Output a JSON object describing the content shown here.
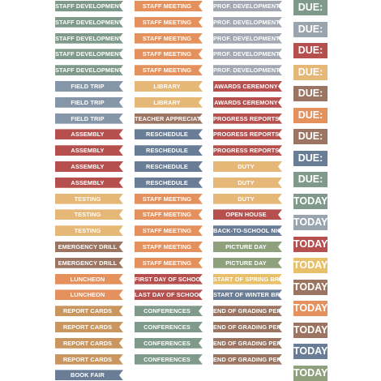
{
  "colors": {
    "sage": "#7f9a8b",
    "orange": "#e4915e",
    "gray": "#a3a8b3",
    "red": "#b5504f",
    "slate": "#8596a9",
    "mustard": "#e6b877",
    "brown": "#9b7562",
    "blue": "#6a7d96",
    "peach": "#edb08c",
    "lgray": "#9aa4ae",
    "olive": "#8fa07c",
    "yellow": "#e8c06a",
    "tan": "#c8965e"
  },
  "columns": [
    {
      "name": "column-1",
      "stickers": [
        {
          "label": "STAFF DEVELOPMENT",
          "color": "sage"
        },
        {
          "label": "STAFF DEVELOPMENT",
          "color": "sage"
        },
        {
          "label": "STAFF DEVELOPMENT",
          "color": "sage"
        },
        {
          "label": "STAFF DEVELOPMENT",
          "color": "sage"
        },
        {
          "label": "STAFF DEVELOPMENT",
          "color": "sage"
        },
        {
          "label": "FIELD TRIP",
          "color": "slate"
        },
        {
          "label": "FIELD TRIP",
          "color": "slate"
        },
        {
          "label": "FIELD TRIP",
          "color": "slate"
        },
        {
          "label": "ASSEMBLY",
          "color": "red"
        },
        {
          "label": "ASSEMBLY",
          "color": "red"
        },
        {
          "label": "ASSEMBLY",
          "color": "red"
        },
        {
          "label": "ASSEMBLY",
          "color": "red"
        },
        {
          "label": "TESTING",
          "color": "mustard"
        },
        {
          "label": "TESTING",
          "color": "mustard"
        },
        {
          "label": "TESTING",
          "color": "mustard"
        },
        {
          "label": "EMERGENCY DRILL",
          "color": "brown"
        },
        {
          "label": "EMERGENCY DRILL",
          "color": "brown"
        },
        {
          "label": "LUNCHEON",
          "color": "orange"
        },
        {
          "label": "LUNCHEON",
          "color": "orange"
        },
        {
          "label": "REPORT CARDS",
          "color": "tan"
        },
        {
          "label": "REPORT CARDS",
          "color": "tan"
        },
        {
          "label": "REPORT CARDS",
          "color": "tan"
        },
        {
          "label": "REPORT CARDS",
          "color": "tan"
        },
        {
          "label": "BOOK FAIR",
          "color": "blue"
        }
      ]
    },
    {
      "name": "column-2",
      "stickers": [
        {
          "label": "STAFF MEETING",
          "color": "orange"
        },
        {
          "label": "STAFF MEETING",
          "color": "orange"
        },
        {
          "label": "STAFF MEETING",
          "color": "orange"
        },
        {
          "label": "STAFF MEETING",
          "color": "orange"
        },
        {
          "label": "STAFF MEETING",
          "color": "orange"
        },
        {
          "label": "LIBRARY",
          "color": "mustard"
        },
        {
          "label": "LIBRARY",
          "color": "mustard"
        },
        {
          "label": "TEACHER APPRECIATION",
          "color": "brown"
        },
        {
          "label": "RESCHEDULE",
          "color": "blue"
        },
        {
          "label": "RESCHEDULE",
          "color": "blue"
        },
        {
          "label": "RESCHEDULE",
          "color": "blue"
        },
        {
          "label": "RESCHEDULE",
          "color": "blue"
        },
        {
          "label": "STAFF MEETING",
          "color": "orange"
        },
        {
          "label": "STAFF MEETING",
          "color": "orange"
        },
        {
          "label": "STAFF MEETING",
          "color": "orange"
        },
        {
          "label": "STAFF MEETING",
          "color": "orange"
        },
        {
          "label": "STAFF MEETING",
          "color": "orange"
        },
        {
          "label": "FIRST DAY OF SCHOOL",
          "color": "red"
        },
        {
          "label": "LAST DAY OF SCHOOL",
          "color": "red"
        },
        {
          "label": "CONFERENCES",
          "color": "sage"
        },
        {
          "label": "CONFERENCES",
          "color": "sage"
        },
        {
          "label": "CONFERENCES",
          "color": "sage"
        },
        {
          "label": "CONFERENCES",
          "color": "sage"
        }
      ]
    },
    {
      "name": "column-3",
      "stickers": [
        {
          "label": "PROF. DEVELOPMENT",
          "color": "gray"
        },
        {
          "label": "PROF. DEVELOPMENT",
          "color": "gray"
        },
        {
          "label": "PROF. DEVELOPMENT",
          "color": "gray"
        },
        {
          "label": "PROF. DEVELOPMENT",
          "color": "gray"
        },
        {
          "label": "PROF. DEVELOPMENT",
          "color": "gray"
        },
        {
          "label": "AWARDS CEREMONY",
          "color": "red"
        },
        {
          "label": "AWARDS CEREMONY",
          "color": "red"
        },
        {
          "label": "PROGRESS REPORTS DUE",
          "color": "red"
        },
        {
          "label": "PROGRESS REPORTS DUE",
          "color": "red"
        },
        {
          "label": "PROGRESS REPORTS DUE",
          "color": "red"
        },
        {
          "label": "DUTY",
          "color": "mustard"
        },
        {
          "label": "DUTY",
          "color": "mustard"
        },
        {
          "label": "DUTY",
          "color": "mustard"
        },
        {
          "label": "OPEN HOUSE",
          "color": "red"
        },
        {
          "label": "BACK-TO-SCHOOL NIGHT",
          "color": "blue"
        },
        {
          "label": "PICTURE DAY",
          "color": "olive"
        },
        {
          "label": "PICTURE DAY",
          "color": "olive"
        },
        {
          "label": "START OF SPRING BREAK",
          "color": "yellow"
        },
        {
          "label": "START OF WINTER BREAK",
          "color": "blue"
        },
        {
          "label": "END OF GRADING PERIOD",
          "color": "brown"
        },
        {
          "label": "END OF GRADING PERIOD",
          "color": "brown"
        },
        {
          "label": "END OF GRADING PERIOD",
          "color": "brown"
        },
        {
          "label": "END OF GRADING PERIOD",
          "color": "brown"
        }
      ]
    }
  ],
  "tags": [
    {
      "label": "DUE:",
      "color": "sage"
    },
    {
      "label": "DUE:",
      "color": "lgray"
    },
    {
      "label": "DUE:",
      "color": "red"
    },
    {
      "label": "DUE:",
      "color": "mustard"
    },
    {
      "label": "DUE:",
      "color": "brown"
    },
    {
      "label": "DUE:",
      "color": "orange"
    },
    {
      "label": "DUE:",
      "color": "brown"
    },
    {
      "label": "DUE:",
      "color": "blue"
    },
    {
      "label": "DUE:",
      "color": "sage"
    },
    {
      "label": "TODAY",
      "color": "sage"
    },
    {
      "label": "TODAY",
      "color": "lgray"
    },
    {
      "label": "TODAY",
      "color": "red"
    },
    {
      "label": "TODAY",
      "color": "yellow"
    },
    {
      "label": "TODAY",
      "color": "brown"
    },
    {
      "label": "TODAY",
      "color": "orange"
    },
    {
      "label": "TODAY",
      "color": "brown"
    },
    {
      "label": "TODAY",
      "color": "blue"
    },
    {
      "label": "TODAY",
      "color": "olive"
    }
  ]
}
